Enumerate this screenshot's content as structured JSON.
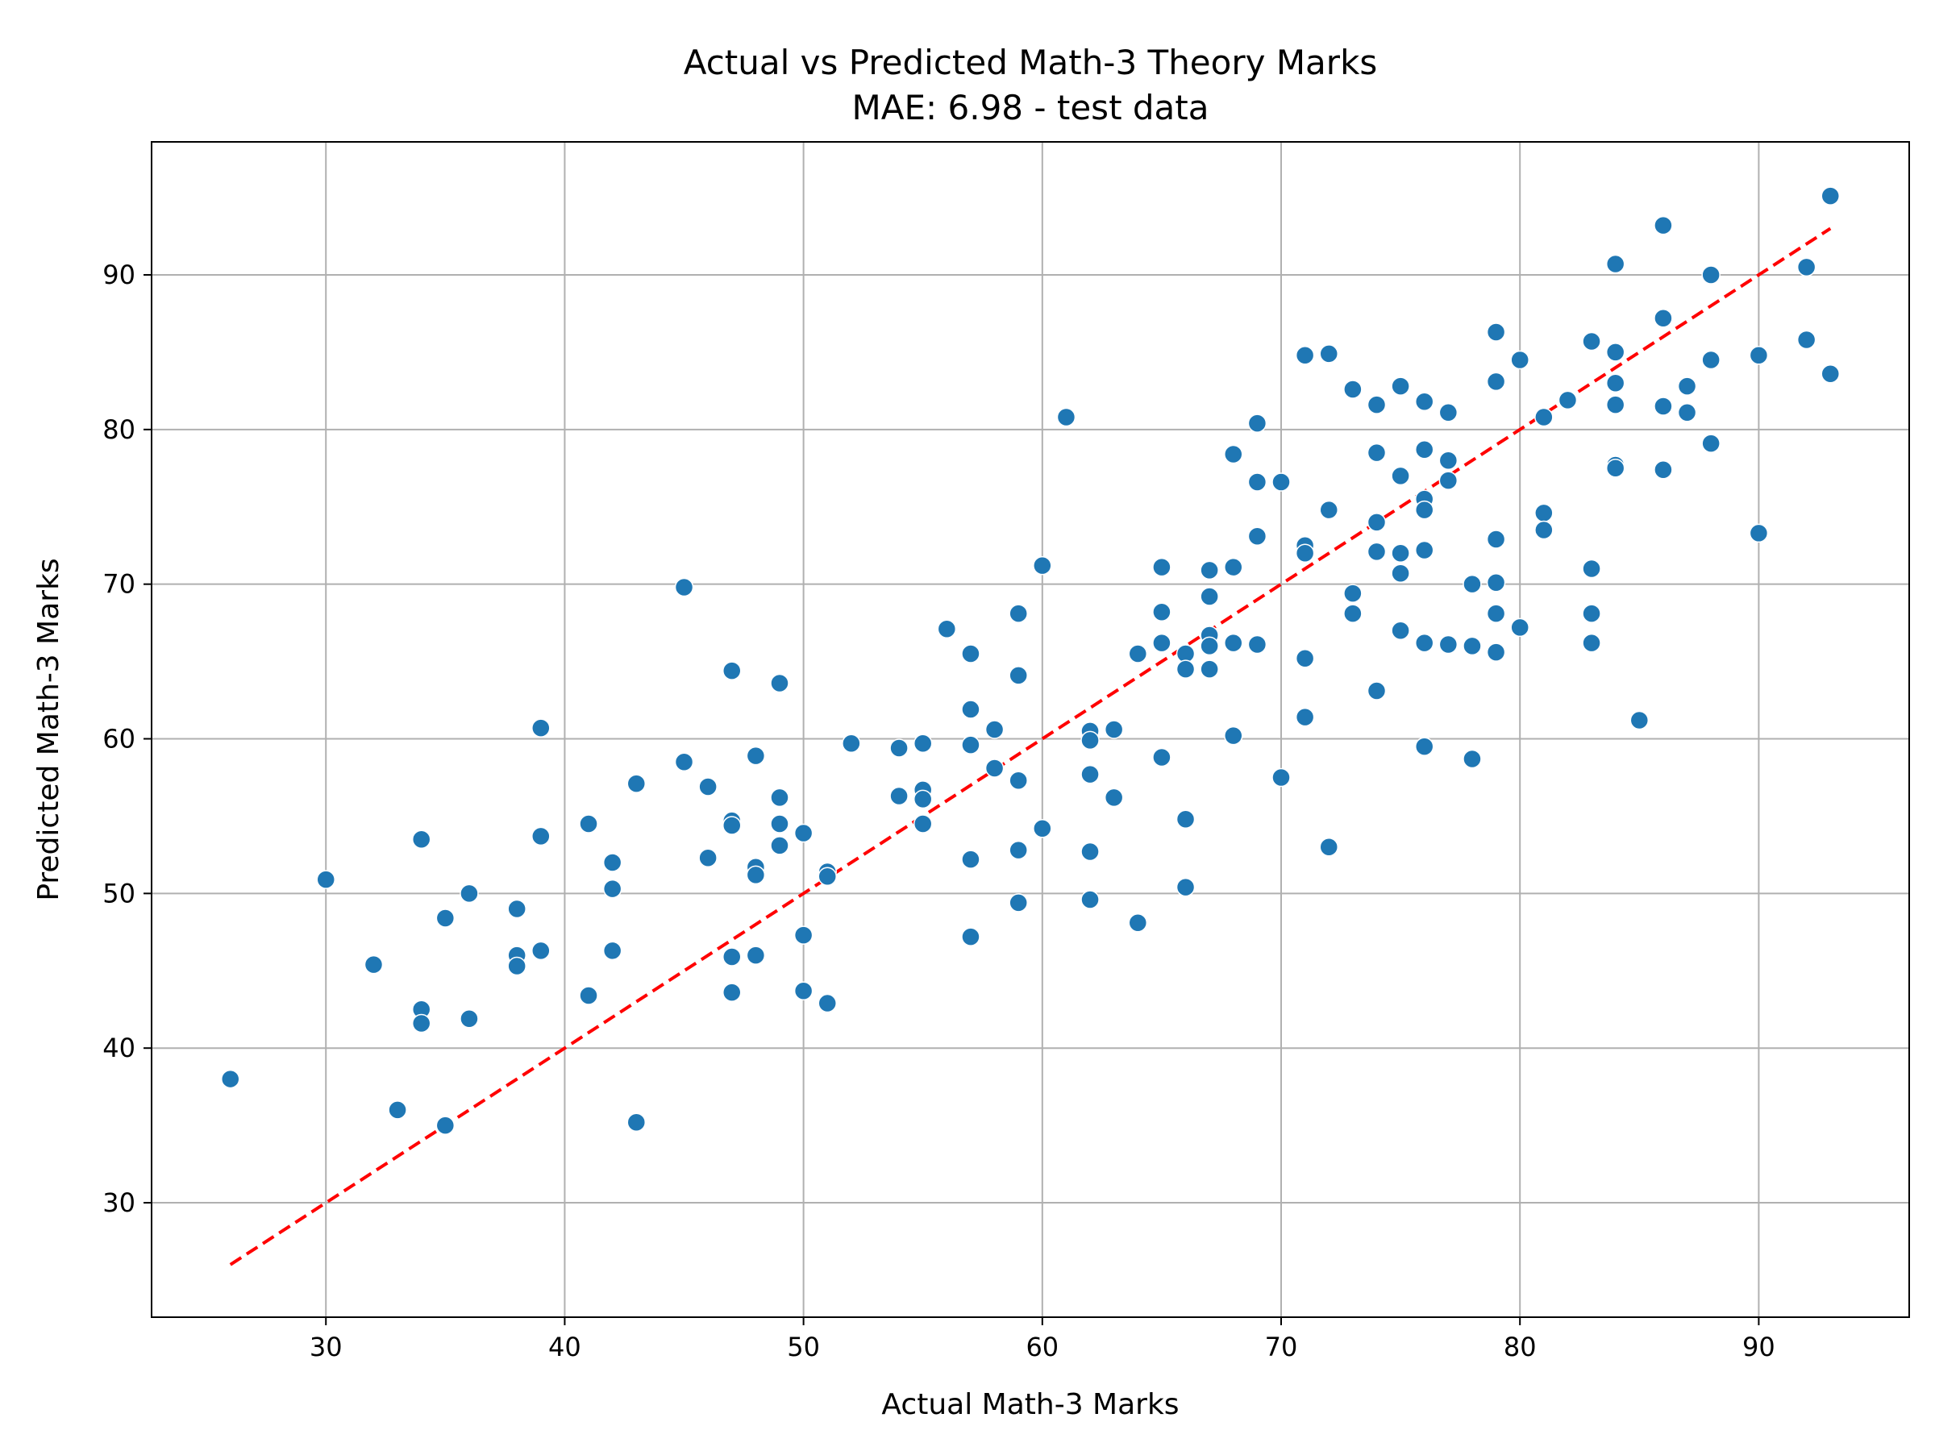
{
  "chart_data": {
    "type": "scatter",
    "title": "Actual vs Predicted Math-3 Theory Marks",
    "subtitle": "MAE: 6.98 - test data",
    "xlabel": "Actual Math-3 Marks",
    "ylabel": "Predicted Math-3 Marks",
    "xlim": [
      22.7,
      96.3
    ],
    "ylim": [
      22.6,
      98.6
    ],
    "xticks": [
      30,
      40,
      50,
      60,
      70,
      80,
      90
    ],
    "yticks": [
      30,
      40,
      50,
      60,
      70,
      80,
      90
    ],
    "grid": true,
    "point_color": "#1f77b4",
    "reference_line": {
      "x": [
        26,
        93
      ],
      "y": [
        26,
        93
      ],
      "color": "#ff0000",
      "style": "dashed"
    },
    "points": [
      [
        26,
        38.0
      ],
      [
        30,
        50.9
      ],
      [
        32,
        45.4
      ],
      [
        33,
        36.0
      ],
      [
        34,
        53.5
      ],
      [
        34,
        42.5
      ],
      [
        34,
        41.6
      ],
      [
        35,
        48.4
      ],
      [
        35,
        35.0
      ],
      [
        36,
        50.0
      ],
      [
        36,
        41.9
      ],
      [
        38,
        49.0
      ],
      [
        38,
        46.0
      ],
      [
        38,
        45.3
      ],
      [
        39,
        60.7
      ],
      [
        39,
        53.7
      ],
      [
        39,
        46.3
      ],
      [
        41,
        54.5
      ],
      [
        41,
        43.4
      ],
      [
        42,
        52.0
      ],
      [
        42,
        50.3
      ],
      [
        42,
        46.3
      ],
      [
        43,
        57.1
      ],
      [
        43,
        35.2
      ],
      [
        45,
        69.8
      ],
      [
        45,
        58.5
      ],
      [
        46,
        56.9
      ],
      [
        46,
        52.3
      ],
      [
        47,
        64.4
      ],
      [
        47,
        54.7
      ],
      [
        47,
        54.4
      ],
      [
        47,
        45.9
      ],
      [
        47,
        43.6
      ],
      [
        48,
        58.9
      ],
      [
        48,
        51.7
      ],
      [
        48,
        51.2
      ],
      [
        48,
        46.0
      ],
      [
        49,
        63.6
      ],
      [
        49,
        56.2
      ],
      [
        49,
        54.5
      ],
      [
        49,
        53.1
      ],
      [
        50,
        53.9
      ],
      [
        50,
        47.3
      ],
      [
        50,
        43.7
      ],
      [
        51,
        51.4
      ],
      [
        51,
        51.1
      ],
      [
        51,
        42.9
      ],
      [
        52,
        59.7
      ],
      [
        54,
        59.4
      ],
      [
        54,
        56.3
      ],
      [
        55,
        59.7
      ],
      [
        55,
        56.7
      ],
      [
        55,
        56.1
      ],
      [
        55,
        54.5
      ],
      [
        56,
        67.1
      ],
      [
        57,
        65.5
      ],
      [
        57,
        61.9
      ],
      [
        57,
        59.6
      ],
      [
        57,
        52.2
      ],
      [
        57,
        47.2
      ],
      [
        58,
        60.6
      ],
      [
        58,
        58.1
      ],
      [
        59,
        68.1
      ],
      [
        59,
        64.1
      ],
      [
        59,
        57.3
      ],
      [
        59,
        52.8
      ],
      [
        59,
        49.4
      ],
      [
        60,
        71.2
      ],
      [
        60,
        54.2
      ],
      [
        61,
        80.8
      ],
      [
        62,
        60.5
      ],
      [
        62,
        59.9
      ],
      [
        62,
        57.7
      ],
      [
        62,
        52.7
      ],
      [
        62,
        49.6
      ],
      [
        63,
        60.6
      ],
      [
        63,
        56.2
      ],
      [
        64,
        65.5
      ],
      [
        64,
        48.1
      ],
      [
        65,
        71.1
      ],
      [
        65,
        68.2
      ],
      [
        65,
        66.2
      ],
      [
        65,
        58.8
      ],
      [
        66,
        65.5
      ],
      [
        66,
        64.5
      ],
      [
        66,
        54.8
      ],
      [
        66,
        50.4
      ],
      [
        67,
        70.9
      ],
      [
        67,
        69.2
      ],
      [
        67,
        66.7
      ],
      [
        67,
        66.0
      ],
      [
        67,
        64.5
      ],
      [
        68,
        78.4
      ],
      [
        68,
        71.1
      ],
      [
        68,
        66.2
      ],
      [
        68,
        60.2
      ],
      [
        69,
        80.4
      ],
      [
        69,
        76.6
      ],
      [
        69,
        73.1
      ],
      [
        69,
        66.1
      ],
      [
        70,
        76.6
      ],
      [
        70,
        57.5
      ],
      [
        71,
        84.8
      ],
      [
        71,
        72.5
      ],
      [
        71,
        72.0
      ],
      [
        71,
        65.2
      ],
      [
        71,
        61.4
      ],
      [
        72,
        84.9
      ],
      [
        72,
        74.8
      ],
      [
        72,
        53.0
      ],
      [
        73,
        82.6
      ],
      [
        73,
        69.4
      ],
      [
        73,
        68.1
      ],
      [
        74,
        81.6
      ],
      [
        74,
        78.5
      ],
      [
        74,
        74.0
      ],
      [
        74,
        72.1
      ],
      [
        74,
        63.1
      ],
      [
        75,
        82.8
      ],
      [
        75,
        77.0
      ],
      [
        75,
        72.0
      ],
      [
        75,
        70.7
      ],
      [
        75,
        67.0
      ],
      [
        76,
        81.8
      ],
      [
        76,
        78.7
      ],
      [
        76,
        75.5
      ],
      [
        76,
        74.8
      ],
      [
        76,
        72.2
      ],
      [
        76,
        66.2
      ],
      [
        76,
        59.5
      ],
      [
        77,
        81.1
      ],
      [
        77,
        78.0
      ],
      [
        77,
        76.7
      ],
      [
        77,
        66.1
      ],
      [
        78,
        70.0
      ],
      [
        78,
        66.0
      ],
      [
        78,
        58.7
      ],
      [
        79,
        86.3
      ],
      [
        79,
        83.1
      ],
      [
        79,
        72.9
      ],
      [
        79,
        70.1
      ],
      [
        79,
        68.1
      ],
      [
        79,
        65.6
      ],
      [
        80,
        84.5
      ],
      [
        80,
        67.2
      ],
      [
        81,
        80.8
      ],
      [
        81,
        74.6
      ],
      [
        81,
        73.5
      ],
      [
        82,
        81.9
      ],
      [
        83,
        85.7
      ],
      [
        83,
        71.0
      ],
      [
        83,
        68.1
      ],
      [
        83,
        66.2
      ],
      [
        84,
        90.7
      ],
      [
        84,
        85.0
      ],
      [
        84,
        83.0
      ],
      [
        84,
        81.6
      ],
      [
        84,
        77.7
      ],
      [
        84,
        77.5
      ],
      [
        85,
        61.2
      ],
      [
        86,
        93.2
      ],
      [
        86,
        87.2
      ],
      [
        86,
        81.5
      ],
      [
        86,
        77.4
      ],
      [
        87,
        82.8
      ],
      [
        87,
        81.1
      ],
      [
        88,
        90.0
      ],
      [
        88,
        84.5
      ],
      [
        88,
        79.1
      ],
      [
        90,
        84.8
      ],
      [
        90,
        73.3
      ],
      [
        92,
        90.5
      ],
      [
        92,
        85.8
      ],
      [
        93,
        95.1
      ],
      [
        93,
        83.6
      ]
    ]
  }
}
